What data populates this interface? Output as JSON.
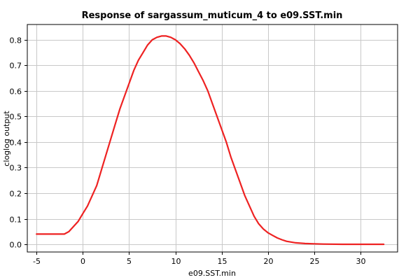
{
  "chart_data": {
    "type": "line",
    "title": "Response of sargassum_muticum_4 to e09.SST.min",
    "xlabel": "e09.SST.min",
    "ylabel": "cloglog output",
    "xlim": [
      -6,
      34
    ],
    "ylim": [
      -0.03,
      0.86
    ],
    "xticks": [
      -5,
      0,
      5,
      10,
      15,
      20,
      25,
      30
    ],
    "yticks": [
      0.0,
      0.1,
      0.2,
      0.3,
      0.4,
      0.5,
      0.6,
      0.7,
      0.8
    ],
    "ytick_labels": [
      "0.0",
      "0.1",
      "0.2",
      "0.3",
      "0.4",
      "0.5",
      "0.6",
      "0.7",
      "0.8"
    ],
    "grid": true,
    "legend": "none",
    "series": [
      {
        "color": "#ee2222",
        "x": [
          -5,
          -4,
          -3,
          -2,
          -1.5,
          -1,
          -0.5,
          0,
          0.5,
          1,
          1.5,
          2,
          2.5,
          3,
          3.5,
          4,
          4.5,
          5,
          5.5,
          6,
          6.5,
          7,
          7.5,
          8,
          8.5,
          9,
          9.5,
          10,
          10.5,
          11,
          11.5,
          12,
          12.5,
          13,
          13.5,
          14,
          14.5,
          15,
          15.5,
          16,
          16.5,
          17,
          17.5,
          18,
          18.5,
          19,
          19.5,
          20,
          20.5,
          21,
          21.5,
          22,
          23,
          24,
          25,
          26,
          28,
          30,
          32.5
        ],
        "y": [
          0.04,
          0.04,
          0.04,
          0.04,
          0.05,
          0.07,
          0.09,
          0.12,
          0.15,
          0.19,
          0.23,
          0.29,
          0.35,
          0.41,
          0.47,
          0.53,
          0.58,
          0.63,
          0.68,
          0.72,
          0.75,
          0.78,
          0.8,
          0.81,
          0.815,
          0.815,
          0.81,
          0.8,
          0.785,
          0.765,
          0.74,
          0.71,
          0.675,
          0.64,
          0.6,
          0.55,
          0.5,
          0.45,
          0.4,
          0.34,
          0.29,
          0.24,
          0.19,
          0.15,
          0.11,
          0.08,
          0.06,
          0.045,
          0.035,
          0.025,
          0.018,
          0.012,
          0.006,
          0.003,
          0.002,
          0.001,
          0.0,
          0.0,
          0.0
        ]
      }
    ]
  }
}
